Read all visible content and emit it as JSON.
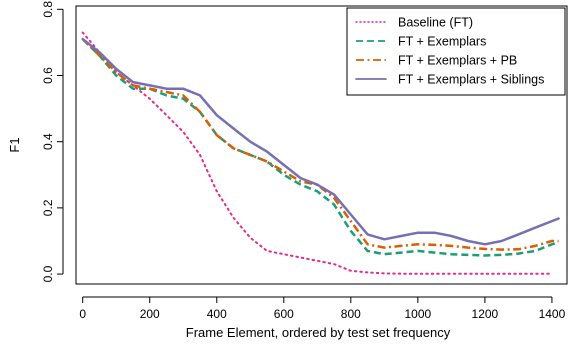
{
  "chart_data": {
    "type": "line",
    "title": "",
    "xlabel": "Frame Element, ordered by test set frequency",
    "ylabel": "F1",
    "xlim": [
      -20,
      1445
    ],
    "ylim": [
      -0.03,
      0.81
    ],
    "x_ticks": [
      0,
      200,
      400,
      600,
      800,
      1000,
      1200,
      1400
    ],
    "y_ticks": [
      0.0,
      0.2,
      0.4,
      0.6,
      0.8
    ],
    "x_tick_labels": [
      "0",
      "200",
      "400",
      "600",
      "800",
      "1000",
      "1200",
      "1400"
    ],
    "y_tick_labels": [
      "0.0",
      "0.2",
      "0.4",
      "0.6",
      "0.8"
    ],
    "legend_position": "top-right",
    "grid": false,
    "series": [
      {
        "name": "Baseline (FT)",
        "color": "#e7298a",
        "style": "dotted",
        "x": [
          0,
          50,
          100,
          150,
          200,
          250,
          300,
          350,
          400,
          450,
          500,
          550,
          600,
          650,
          700,
          750,
          800,
          850,
          900,
          950,
          1000,
          1050,
          1100,
          1150,
          1200,
          1250,
          1300,
          1350,
          1400
        ],
        "y": [
          0.73,
          0.67,
          0.61,
          0.57,
          0.53,
          0.48,
          0.43,
          0.36,
          0.25,
          0.17,
          0.11,
          0.07,
          0.06,
          0.05,
          0.04,
          0.03,
          0.01,
          0.005,
          0.002,
          0.001,
          0.001,
          0.001,
          0.001,
          0.001,
          0.001,
          0.001,
          0.001,
          0.001,
          0.001
        ]
      },
      {
        "name": "FT + Exemplars",
        "color": "#1b9e77",
        "style": "dashed",
        "x": [
          0,
          50,
          100,
          150,
          200,
          250,
          300,
          350,
          400,
          450,
          500,
          550,
          600,
          650,
          700,
          750,
          800,
          850,
          900,
          950,
          1000,
          1050,
          1100,
          1150,
          1200,
          1250,
          1300,
          1350,
          1400,
          1420
        ],
        "y": [
          0.71,
          0.66,
          0.6,
          0.56,
          0.56,
          0.54,
          0.53,
          0.49,
          0.42,
          0.38,
          0.36,
          0.34,
          0.3,
          0.27,
          0.25,
          0.21,
          0.13,
          0.07,
          0.06,
          0.065,
          0.07,
          0.065,
          0.06,
          0.058,
          0.056,
          0.058,
          0.062,
          0.07,
          0.09,
          0.095
        ]
      },
      {
        "name": "FT + Exemplars + PB",
        "color": "#d95f02",
        "style": "dashdot",
        "x": [
          0,
          50,
          100,
          150,
          200,
          250,
          300,
          350,
          400,
          450,
          500,
          550,
          600,
          650,
          700,
          750,
          800,
          850,
          900,
          950,
          1000,
          1050,
          1100,
          1150,
          1200,
          1250,
          1300,
          1350,
          1400,
          1420
        ],
        "y": [
          0.71,
          0.66,
          0.61,
          0.57,
          0.56,
          0.55,
          0.54,
          0.49,
          0.42,
          0.38,
          0.36,
          0.34,
          0.31,
          0.28,
          0.27,
          0.23,
          0.16,
          0.09,
          0.08,
          0.085,
          0.09,
          0.088,
          0.085,
          0.08,
          0.076,
          0.074,
          0.075,
          0.085,
          0.1,
          0.1
        ]
      },
      {
        "name": "FT + Exemplars + Siblings",
        "color": "#7570b3",
        "style": "solid",
        "x": [
          0,
          50,
          100,
          150,
          200,
          250,
          300,
          350,
          400,
          450,
          500,
          550,
          600,
          650,
          700,
          750,
          800,
          850,
          900,
          950,
          1000,
          1050,
          1100,
          1150,
          1200,
          1250,
          1300,
          1350,
          1400,
          1420
        ],
        "y": [
          0.71,
          0.67,
          0.62,
          0.58,
          0.57,
          0.56,
          0.56,
          0.54,
          0.48,
          0.44,
          0.4,
          0.37,
          0.33,
          0.29,
          0.27,
          0.24,
          0.18,
          0.12,
          0.105,
          0.115,
          0.125,
          0.125,
          0.115,
          0.1,
          0.09,
          0.1,
          0.12,
          0.14,
          0.16,
          0.168
        ]
      }
    ]
  }
}
